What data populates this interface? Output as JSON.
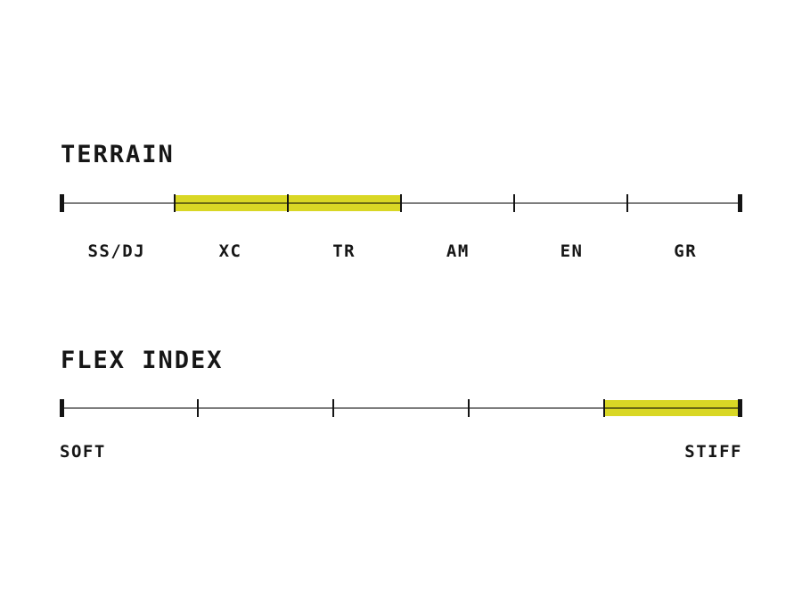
{
  "colors": {
    "highlight": "#d9d725",
    "line": "#7d7d7d",
    "ink": "#141414"
  },
  "terrain": {
    "title": "TERRAIN",
    "segments": 6,
    "tick_labels": [
      "SS/DJ",
      "XC",
      "TR",
      "AM",
      "EN",
      "GR"
    ],
    "highlight": {
      "from_tick": 1,
      "to_tick": 3
    }
  },
  "flex": {
    "title": "FLEX INDEX",
    "segments": 5,
    "min_label": "SOFT",
    "max_label": "STIFF",
    "highlight": {
      "from_tick": 4,
      "to_tick": 5
    }
  },
  "chart_data": [
    {
      "type": "range-scale",
      "title": "TERRAIN",
      "categories": [
        "SS/DJ",
        "XC",
        "TR",
        "AM",
        "EN",
        "GR"
      ],
      "segments": 6,
      "highlighted_categories": [
        "XC",
        "TR"
      ],
      "highlight_range_fraction": [
        0.1667,
        0.5
      ],
      "legend_position": "none",
      "grid": false
    },
    {
      "type": "range-scale",
      "title": "FLEX INDEX",
      "axis_min_label": "SOFT",
      "axis_max_label": "STIFF",
      "segments": 5,
      "highlight_range_fraction": [
        0.8,
        1.0
      ],
      "legend_position": "none",
      "grid": false
    }
  ]
}
